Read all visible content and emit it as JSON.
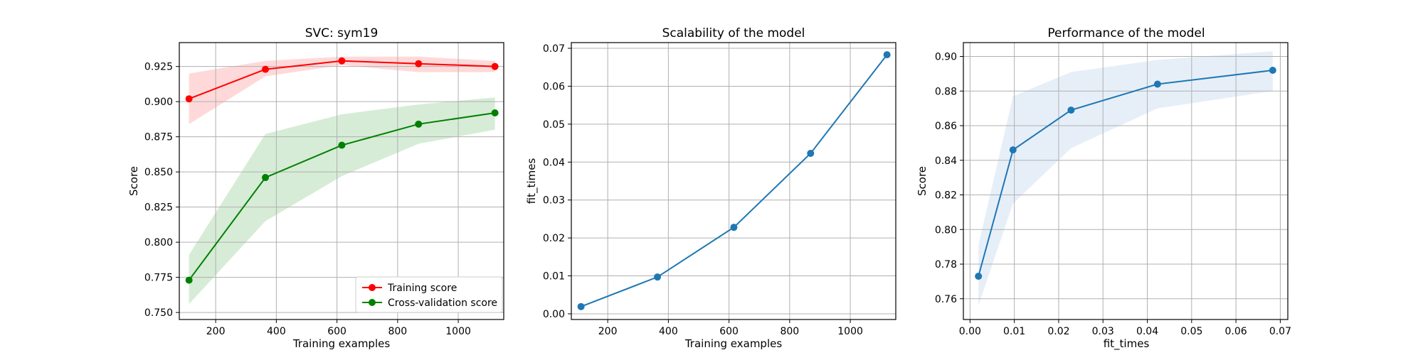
{
  "chart_data": [
    {
      "type": "line",
      "title": "SVC: sym19",
      "xlabel": "Training examples",
      "ylabel": "Score",
      "xlim": [
        80,
        1150
      ],
      "ylim": [
        0.745,
        0.942
      ],
      "xticks": [
        200,
        400,
        600,
        800,
        1000
      ],
      "yticks": [
        0.75,
        0.775,
        0.8,
        0.825,
        0.85,
        0.875,
        0.9,
        0.925
      ],
      "ytick_labels": [
        "0.750",
        "0.775",
        "0.800",
        "0.825",
        "0.850",
        "0.875",
        "0.900",
        "0.925"
      ],
      "grid": true,
      "legend": "lower-right",
      "x": [
        112,
        364,
        616,
        869,
        1121
      ],
      "series": [
        {
          "name": "Training score",
          "color": "#ff0000",
          "band_color": "#ffcccc",
          "values": [
            0.902,
            0.923,
            0.929,
            0.927,
            0.925
          ],
          "lower": [
            0.884,
            0.918,
            0.926,
            0.921,
            0.921
          ],
          "upper": [
            0.92,
            0.929,
            0.932,
            0.932,
            0.929
          ]
        },
        {
          "name": "Cross-validation score",
          "color": "#008000",
          "band_color": "#c8e6c8",
          "values": [
            0.773,
            0.846,
            0.869,
            0.884,
            0.892
          ],
          "lower": [
            0.756,
            0.815,
            0.847,
            0.87,
            0.88
          ],
          "upper": [
            0.791,
            0.877,
            0.891,
            0.898,
            0.903
          ]
        }
      ]
    },
    {
      "type": "line",
      "title": "Scalability of the model",
      "xlabel": "Training examples",
      "ylabel": "fit_times",
      "xlim": [
        80,
        1150
      ],
      "ylim": [
        -0.0015,
        0.0715
      ],
      "xticks": [
        200,
        400,
        600,
        800,
        1000
      ],
      "yticks": [
        0.0,
        0.01,
        0.02,
        0.03,
        0.04,
        0.05,
        0.06,
        0.07
      ],
      "ytick_labels": [
        "0.00",
        "0.01",
        "0.02",
        "0.03",
        "0.04",
        "0.05",
        "0.06",
        "0.07"
      ],
      "grid": true,
      "x": [
        112,
        364,
        616,
        869,
        1121
      ],
      "series": [
        {
          "color": "#1f77b4",
          "band_color": "#d6e4f2",
          "values": [
            0.0019,
            0.0097,
            0.0228,
            0.0423,
            0.0683
          ],
          "lower": [
            0.0018,
            0.0096,
            0.0227,
            0.0422,
            0.0681
          ],
          "upper": [
            0.002,
            0.0098,
            0.0229,
            0.0424,
            0.0685
          ]
        }
      ]
    },
    {
      "type": "line",
      "title": "Performance of the model",
      "xlabel": "fit_times",
      "ylabel": "Score",
      "xlim": [
        -0.0015,
        0.0717
      ],
      "ylim": [
        0.748,
        0.908
      ],
      "xticks": [
        0.0,
        0.01,
        0.02,
        0.03,
        0.04,
        0.05,
        0.06,
        0.07
      ],
      "xtick_labels": [
        "0.00",
        "0.01",
        "0.02",
        "0.03",
        "0.04",
        "0.05",
        "0.06",
        "0.07"
      ],
      "yticks": [
        0.76,
        0.78,
        0.8,
        0.82,
        0.84,
        0.86,
        0.88,
        0.9
      ],
      "ytick_labels": [
        "0.76",
        "0.78",
        "0.80",
        "0.82",
        "0.84",
        "0.86",
        "0.88",
        "0.90"
      ],
      "grid": true,
      "x": [
        0.0019,
        0.0097,
        0.0228,
        0.0423,
        0.0683
      ],
      "series": [
        {
          "color": "#1f77b4",
          "band_color": "#dde9f5",
          "values": [
            0.773,
            0.846,
            0.869,
            0.884,
            0.892
          ],
          "lower": [
            0.756,
            0.815,
            0.847,
            0.87,
            0.88
          ],
          "upper": [
            0.791,
            0.877,
            0.891,
            0.898,
            0.903
          ]
        }
      ]
    }
  ]
}
